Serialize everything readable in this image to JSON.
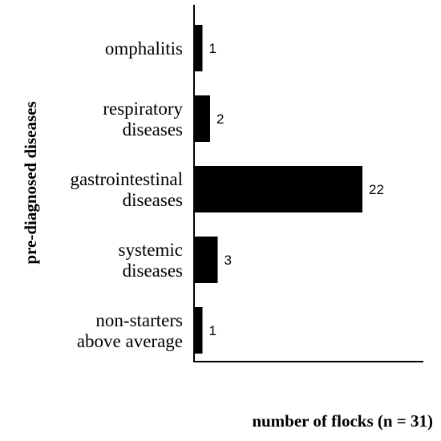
{
  "chart_data": {
    "type": "bar",
    "orientation": "horizontal",
    "categories": [
      [
        "omphalitis"
      ],
      [
        "respiratory",
        "diseases"
      ],
      [
        "gastrointestinal",
        "diseases"
      ],
      [
        "systemic",
        "diseases"
      ],
      [
        "non-starters",
        "above average"
      ]
    ],
    "values": [
      1,
      2,
      22,
      3,
      1
    ],
    "data_labels": [
      "1",
      "2",
      "22",
      "3",
      "1"
    ],
    "xlabel": "number of flocks (n = 31)",
    "ylabel": "pre-diagnosed diseases",
    "title": "",
    "xlim": [
      0,
      31
    ],
    "grid": false,
    "legend": "none",
    "bar_color": "#000000"
  }
}
